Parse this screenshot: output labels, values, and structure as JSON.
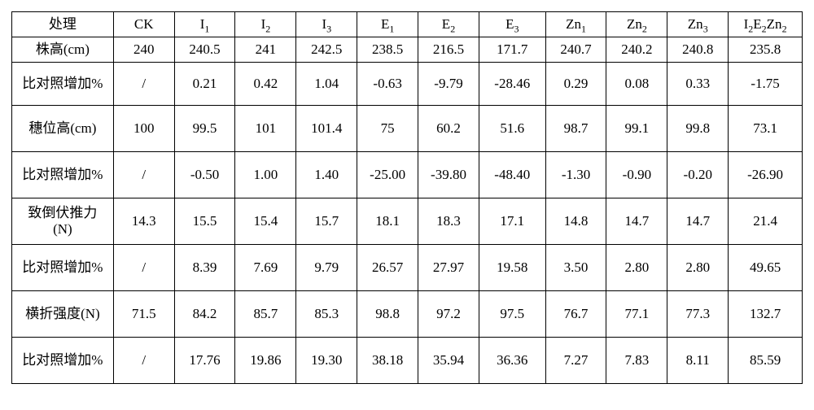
{
  "table": {
    "columns": [
      {
        "key": "label",
        "html": "处理"
      },
      {
        "key": "CK",
        "html": "CK"
      },
      {
        "key": "I1",
        "html": "I<sub>1</sub>"
      },
      {
        "key": "I2",
        "html": "I<sub>2</sub>"
      },
      {
        "key": "I3",
        "html": "I<sub>3</sub>"
      },
      {
        "key": "E1",
        "html": "E<sub>1</sub>"
      },
      {
        "key": "E2",
        "html": "E<sub>2</sub>"
      },
      {
        "key": "E3",
        "html": "E<sub>3</sub>"
      },
      {
        "key": "Zn1",
        "html": "Zn<sub>1</sub>"
      },
      {
        "key": "Zn2",
        "html": "Zn<sub>2</sub>"
      },
      {
        "key": "Zn3",
        "html": "Zn<sub>3</sub>"
      },
      {
        "key": "I2E2Zn2",
        "html": "I<sub>2</sub>E<sub>2</sub>Zn<sub>2</sub>"
      }
    ],
    "rows": [
      {
        "size": "short",
        "cells": [
          "株高(cm)",
          "240",
          "240.5",
          "241",
          "242.5",
          "238.5",
          "216.5",
          "171.7",
          "240.7",
          "240.2",
          "240.8",
          "235.8"
        ]
      },
      {
        "size": "med",
        "cells": [
          "比对照增加%",
          "/",
          "0.21",
          "0.42",
          "1.04",
          "-0.63",
          "-9.79",
          "-28.46",
          "0.29",
          "0.08",
          "0.33",
          "-1.75"
        ]
      },
      {
        "size": "tall",
        "cells": [
          "穗位高(cm)",
          "100",
          "99.5",
          "101",
          "101.4",
          "75",
          "60.2",
          "51.6",
          "98.7",
          "99.1",
          "99.8",
          "73.1"
        ]
      },
      {
        "size": "tall",
        "cells": [
          "比对照增加%",
          "/",
          "-0.50",
          "1.00",
          "1.40",
          "-25.00",
          "-39.80",
          "-48.40",
          "-1.30",
          "-0.90",
          "-0.20",
          "-26.90"
        ]
      },
      {
        "size": "tall",
        "cells": [
          "致倒伏推力\n(N)",
          "14.3",
          "15.5",
          "15.4",
          "15.7",
          "18.1",
          "18.3",
          "17.1",
          "14.8",
          "14.7",
          "14.7",
          "21.4"
        ]
      },
      {
        "size": "tall",
        "cells": [
          "比对照增加%",
          "/",
          "8.39",
          "7.69",
          "9.79",
          "26.57",
          "27.97",
          "19.58",
          "3.50",
          "2.80",
          "2.80",
          "49.65"
        ]
      },
      {
        "size": "tall",
        "cells": [
          "横折强度(N)",
          "71.5",
          "84.2",
          "85.7",
          "85.3",
          "98.8",
          "97.2",
          "97.5",
          "76.7",
          "77.1",
          "77.3",
          "132.7"
        ]
      },
      {
        "size": "tall",
        "cells": [
          "比对照增加%",
          "/",
          "17.76",
          "19.86",
          "19.30",
          "38.18",
          "35.94",
          "36.36",
          "7.27",
          "7.83",
          "8.11",
          "85.59"
        ]
      }
    ],
    "col_classes": [
      "c0",
      "cn",
      "cn",
      "cn",
      "cn",
      "cn",
      "cn",
      "cw",
      "cn",
      "cn",
      "cn",
      "cx"
    ]
  }
}
